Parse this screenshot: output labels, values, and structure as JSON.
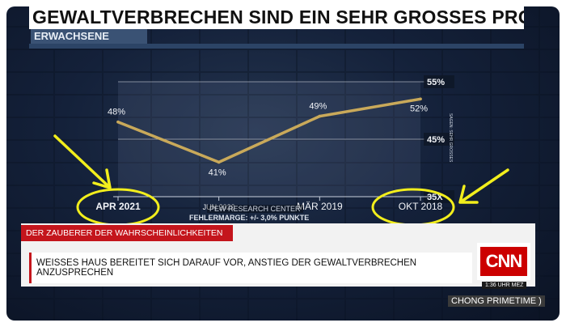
{
  "title": "GEWALTVERBRECHEN SIND EIN SEHR GROSSES PROBLEM",
  "subtitle": "ERWACHSENE",
  "chart_data": {
    "type": "line",
    "categories": [
      "APR 2021",
      "JUN 2020",
      "MÄR 2019",
      "OKT 2018"
    ],
    "values": [
      48,
      41,
      49,
      52
    ],
    "value_labels": [
      "48%",
      "41%",
      "49%",
      "52%"
    ],
    "ytick_labels": [
      "55%",
      "45%",
      "35X"
    ],
    "yticks": [
      55,
      45,
      35
    ],
    "ylim": [
      35,
      55
    ],
    "line_color": "#c9a95a",
    "grid": true
  },
  "source_text": "PEW RESEARCH CENTER",
  "margin_text": "FEHLERMARGE: +/- 3,0% PUNKTE",
  "side_text": "SAGEN: SEHR GROSSES",
  "lower_third": {
    "tag": "DER ZAUBERER DER WAHRSCHEINLICHKEITEN",
    "headline": "WEISSES HAUS BEREITET SICH DARAUF VOR, ANSTIEG DER GEWALTVERBRECHEN ANZUSPRECHEN",
    "logo": "CNN",
    "time": "1:36 UHR MEZ"
  },
  "show_name": "CHONG PRIMETIME )",
  "annotation_color": "#f2ee1c",
  "colors": {
    "brand_red": "#c4151c"
  }
}
